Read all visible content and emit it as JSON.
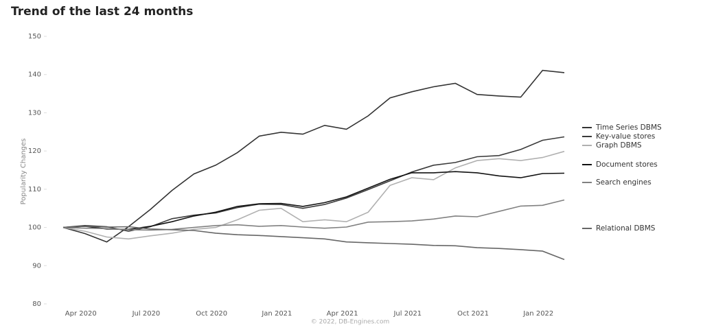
{
  "chart_data": {
    "type": "line",
    "title": "Trend of the last 24 months",
    "y_label": "Popularity Changes",
    "footer": "© 2022, DB-Engines.com",
    "categories": [
      null,
      "Apr 2020",
      null,
      null,
      "Jul 2020",
      null,
      null,
      "Oct 2020",
      null,
      null,
      "Jan 2021",
      null,
      null,
      "Apr 2021",
      null,
      null,
      "Jul 2021",
      null,
      null,
      "Oct 2021",
      null,
      null,
      "Jan 2022",
      null
    ],
    "ylim": [
      80,
      150
    ],
    "yticks": [
      80,
      90,
      100,
      110,
      120,
      130,
      140,
      150
    ],
    "grid": false,
    "series": [
      {
        "name": "Time Series DBMS",
        "color": "#333333",
        "values": [
          100,
          98.4,
          96.2,
          100.2,
          104.7,
          109.7,
          114.0,
          116.3,
          119.6,
          123.9,
          124.9,
          124.4,
          126.7,
          125.7,
          129.2,
          133.9,
          135.5,
          136.8,
          137.7,
          134.8,
          134.4,
          134.1,
          141.1,
          140.5
        ]
      },
      {
        "name": "Key-value stores",
        "color": "#3a3a3a",
        "values": [
          100,
          100.5,
          100.2,
          99.0,
          100.2,
          102.3,
          103.2,
          103.8,
          105.2,
          106.1,
          106.0,
          105.0,
          106.0,
          107.7,
          109.9,
          112.2,
          114.5,
          116.3,
          117.0,
          118.5,
          118.8,
          120.4,
          122.8,
          123.7
        ]
      },
      {
        "name": "Graph DBMS",
        "color": "#b0b0b0",
        "values": [
          100,
          99.0,
          97.5,
          97.0,
          97.8,
          98.5,
          99.5,
          100.0,
          102.0,
          104.5,
          105.0,
          101.5,
          102.0,
          101.5,
          104.0,
          111.0,
          113.0,
          112.5,
          115.6,
          117.5,
          118.0,
          117.5,
          118.3,
          119.9
        ]
      },
      {
        "name": "Document stores",
        "color": "#111111",
        "values": [
          100,
          100.3,
          99.6,
          99.5,
          100.3,
          101.5,
          103.0,
          104.0,
          105.5,
          106.2,
          106.3,
          105.5,
          106.5,
          108.0,
          110.3,
          112.6,
          114.3,
          114.3,
          114.6,
          114.3,
          113.5,
          113.0,
          114.1,
          114.2
        ]
      },
      {
        "name": "Search engines",
        "color": "#808080",
        "values": [
          100,
          99.8,
          99.7,
          99.4,
          99.3,
          99.5,
          100.0,
          100.5,
          100.7,
          100.3,
          100.5,
          100.1,
          99.8,
          100.1,
          101.4,
          101.5,
          101.7,
          102.2,
          103.0,
          102.8,
          104.2,
          105.6,
          105.8,
          107.2
        ]
      },
      {
        "name": "Relational DBMS",
        "color": "#666666",
        "values": [
          100,
          100.3,
          100.1,
          100.2,
          99.6,
          99.4,
          99.2,
          98.5,
          98.1,
          97.9,
          97.6,
          97.3,
          97.0,
          96.2,
          96.0,
          95.8,
          95.6,
          95.3,
          95.2,
          94.7,
          94.5,
          94.2,
          93.8,
          91.6
        ]
      }
    ]
  }
}
